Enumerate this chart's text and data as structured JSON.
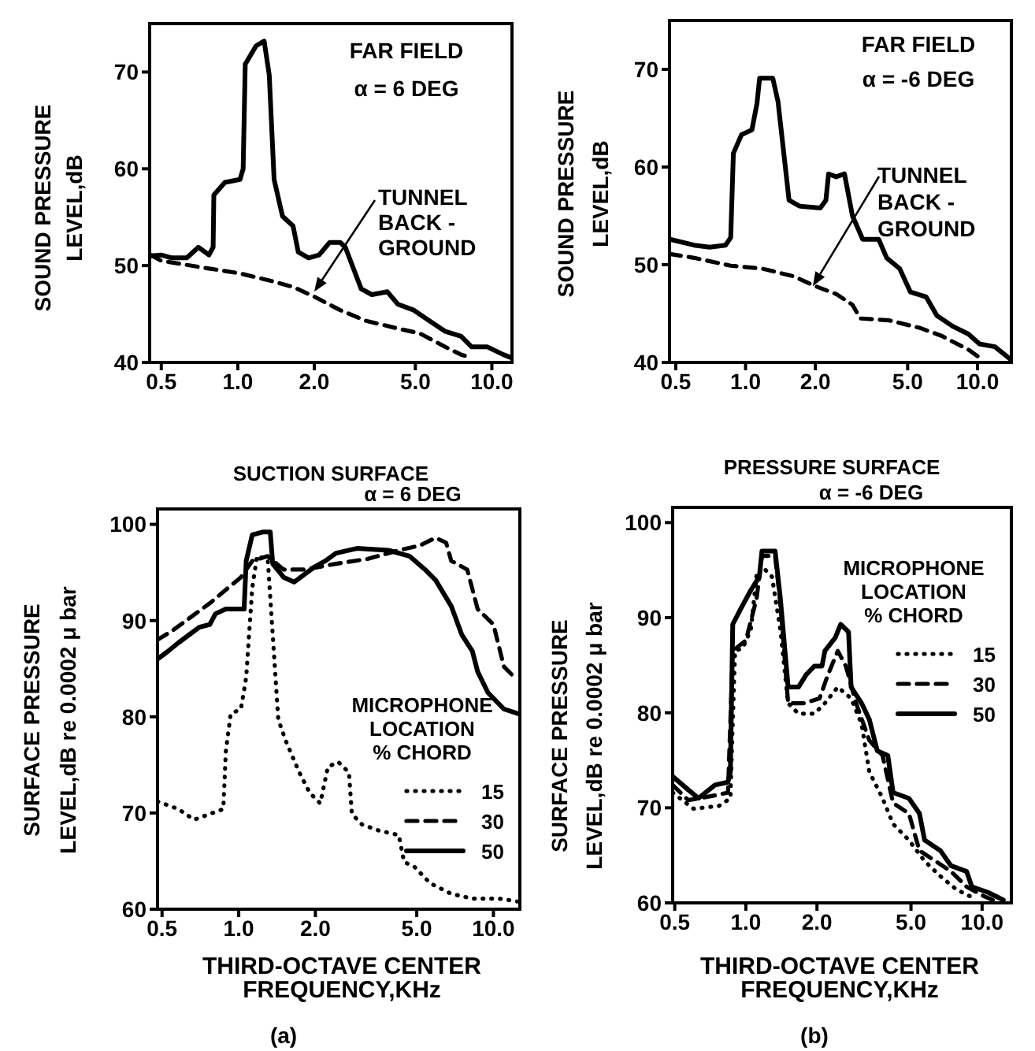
{
  "chart_data": [
    {
      "type": "line",
      "ylabel": "SOUND PRESSURE\nLEVEL,dB",
      "log": "x",
      "xlim": [
        0.45,
        12
      ],
      "ylim": [
        40,
        75
      ],
      "xticks": [
        {
          "value": 0.5,
          "label": "0.5"
        },
        {
          "value": 1,
          "label": "1.0"
        },
        {
          "value": 2,
          "label": "2.0"
        },
        {
          "value": 5,
          "label": "5.0"
        },
        {
          "value": 10,
          "label": "10.0"
        }
      ],
      "yticks": [
        40,
        50,
        60,
        70
      ],
      "annotations": [
        "FAR FIELD\nα = 6 DEG",
        {
          "text": "TUNNEL\nBACK -\nGROUND",
          "x": 2.0,
          "y": 47.3
        }
      ],
      "series": [
        {
          "color": "#000000",
          "line_style": "solid",
          "x": [
            0.455,
            0.5,
            0.55,
            0.63,
            0.7,
            0.77,
            0.8,
            0.805,
            0.89,
            1.02,
            1.05,
            1.07,
            1.18,
            1.27,
            1.33,
            1.39,
            1.5,
            1.65,
            1.73,
            1.9,
            2.09,
            2.3,
            2.53,
            2.65,
            3.06,
            3.37,
            3.88,
            4.27,
            4.93,
            5.68,
            6.56,
            7.57,
            8.33,
            9.61,
            11.1,
            11.9
          ],
          "values": [
            51,
            51.1,
            50.8,
            50.8,
            51.9,
            51.1,
            51.9,
            57.3,
            58.6,
            58.9,
            60,
            70.8,
            72.7,
            73.2,
            69.7,
            58.9,
            55.1,
            54.1,
            51.4,
            50.8,
            51.1,
            52.4,
            52.4,
            51.9,
            47.6,
            47,
            47.3,
            46,
            45.4,
            44.3,
            43.2,
            42.7,
            41.6,
            41.6,
            40.8,
            40.5
          ]
        },
        {
          "color": "#000000",
          "line_style": "dashed",
          "x": [
            0.455,
            0.5,
            0.77,
            1.02,
            1.36,
            1.65,
            2.0,
            2.53,
            3.2,
            4.27,
            5.2,
            6.56,
            7.57,
            8.3
          ],
          "values": [
            51.1,
            50.5,
            49.7,
            49.2,
            48.4,
            47.8,
            46.8,
            45.4,
            44.3,
            43.5,
            43,
            41.6,
            40.8,
            40.5
          ]
        }
      ]
    },
    {
      "type": "line",
      "ylabel": "SOUND PRESSURE\nLEVEL,dB",
      "log": "x",
      "xlim": [
        0.47,
        14
      ],
      "ylim": [
        40,
        75
      ],
      "xticks": [
        {
          "value": 0.5,
          "label": "0.5"
        },
        {
          "value": 1,
          "label": "1.0"
        },
        {
          "value": 2,
          "label": "2.0"
        },
        {
          "value": 5,
          "label": "5.0"
        },
        {
          "value": 10,
          "label": "10.0"
        }
      ],
      "yticks": [
        40,
        50,
        60,
        70
      ],
      "annotations": [
        "FAR FIELD\nα = -6 DEG",
        {
          "text": "TUNNEL\nBACK -\nGROUND",
          "x": 1.95,
          "y": 47.8
        }
      ],
      "series": [
        {
          "color": "#000000",
          "line_style": "solid",
          "x": [
            0.472,
            0.6,
            0.7,
            0.82,
            0.863,
            0.886,
            0.96,
            1.065,
            1.12,
            1.15,
            1.31,
            1.38,
            1.54,
            1.71,
            2.1,
            2.22,
            2.28,
            2.46,
            2.67,
            2.89,
            3.2,
            3.75,
            4.06,
            4.62,
            5.14,
            6.01,
            6.68,
            7.82,
            9.14,
            10.2,
            11.9,
            13.9
          ],
          "values": [
            52.6,
            52,
            51.8,
            52,
            52.8,
            61.4,
            63.3,
            63.8,
            66.5,
            69.1,
            69.1,
            66.7,
            56.6,
            56,
            55.8,
            56.6,
            59.3,
            59,
            59.3,
            55,
            52.6,
            52.6,
            50.7,
            49.6,
            47.2,
            46.7,
            44.8,
            43.7,
            42.9,
            41.9,
            41.6,
            40.3
          ]
        },
        {
          "color": "#000000",
          "line_style": "dashed",
          "x": [
            0.472,
            0.6,
            0.863,
            1.18,
            1.62,
            2.0,
            2.46,
            2.89,
            3.12,
            4.17,
            5.7,
            7.03,
            9.14,
            10.2
          ],
          "values": [
            51.1,
            50.7,
            49.9,
            49.6,
            48.8,
            47.8,
            47,
            45.9,
            44.5,
            44.3,
            43.5,
            42.7,
            41.3,
            40.5
          ]
        }
      ]
    },
    {
      "type": "line",
      "title": "SUCTION SURFACE",
      "subtitle": "α = 6 DEG",
      "xlabel": "THIRD-OCTAVE CENTER\nFREQUENCY,KHz",
      "ylabel": "SURFACE PRESSURE\nLEVEL,dB re 0.0002 μ bar",
      "legend_title": "MICROPHONE\nLOCATION\n% CHORD",
      "legend": "bottom right",
      "log": "x",
      "xlim": [
        0.48,
        12.7
      ],
      "ylim": [
        60,
        101.6
      ],
      "xticks": [
        {
          "value": 0.5,
          "label": "0.5"
        },
        {
          "value": 1,
          "label": "1.0"
        },
        {
          "value": 2,
          "label": "2.0"
        },
        {
          "value": 5,
          "label": "5.0"
        },
        {
          "value": 10,
          "label": "10.0"
        }
      ],
      "yticks": [
        60,
        70,
        80,
        90,
        100
      ],
      "annotations": [
        "(a)"
      ],
      "series": [
        {
          "name": "15",
          "color": "#000000",
          "line_style": "dotted",
          "x": [
            0.48,
            0.58,
            0.668,
            0.77,
            0.87,
            0.89,
            0.93,
            1.02,
            1.07,
            1.13,
            1.18,
            1.3,
            1.43,
            1.53,
            1.73,
            1.9,
            2.09,
            2.24,
            2.46,
            2.71,
            2.78,
            3.05,
            3.52,
            4.25,
            4.46,
            4.9,
            5.64,
            6.83,
            8.27,
            10.5,
            12.4
          ],
          "values": [
            71.2,
            70.4,
            69.3,
            69.9,
            70.4,
            76.4,
            80.3,
            80.8,
            84.1,
            93.4,
            96.7,
            96.4,
            79.7,
            77.5,
            74.2,
            72.1,
            71,
            74.8,
            75.3,
            74.2,
            69.9,
            68.8,
            68.2,
            67.7,
            64.9,
            64.4,
            62.7,
            61.6,
            61.1,
            61.1,
            60.8
          ]
        },
        {
          "name": "30",
          "color": "#000000",
          "line_style": "dashed",
          "x": [
            0.48,
            0.552,
            0.77,
            1.02,
            1.13,
            1.3,
            1.5,
            1.81,
            2.41,
            3.2,
            4.25,
            5.14,
            5.93,
            6.52,
            6.83,
            7.89,
            8.67,
            10,
            11,
            12.1
          ],
          "values": [
            88,
            89,
            91.8,
            94.5,
            96.2,
            96.7,
            95.3,
            95.3,
            95.9,
            96.4,
            97.3,
            97.8,
            98.6,
            98.1,
            96.2,
            95.3,
            91.2,
            89.6,
            85.2,
            84.1
          ]
        },
        {
          "name": "50",
          "color": "#000000",
          "line_style": "solid",
          "x": [
            0.48,
            0.527,
            0.58,
            0.637,
            0.7,
            0.77,
            0.81,
            0.89,
            1.05,
            1.07,
            1.13,
            1.24,
            1.33,
            1.36,
            1.5,
            1.65,
            1.81,
            1.99,
            2.19,
            2.41,
            2.91,
            3.87,
            4.68,
            5.39,
            5.93,
            6.83,
            7.52,
            8.27,
            8.67,
            9.52,
            11,
            12.6
          ],
          "values": [
            86,
            86.8,
            87.7,
            88.5,
            89.3,
            89.6,
            90.7,
            91.2,
            91.2,
            96.2,
            98.9,
            99.2,
            99.2,
            95.9,
            94.5,
            94,
            94.8,
            95.6,
            96.2,
            97,
            97.5,
            97.3,
            96.7,
            95.3,
            94.2,
            91.5,
            88.5,
            86.8,
            84.7,
            82.5,
            80.8,
            80.3
          ]
        }
      ]
    },
    {
      "type": "line",
      "title": "PRESSURE SURFACE",
      "subtitle": "α = -6 DEG",
      "xlabel": "THIRD-OCTAVE CENTER\nFREQUENCY,KHz",
      "ylabel": "SURFACE PRESSURE\nLEVEL,dB re 0.0002 μ bar",
      "legend_title": "MICROPHONE\nLOCATION\n% CHORD",
      "legend": "top right",
      "log": "x",
      "xlim": [
        0.49,
        13.3
      ],
      "ylim": [
        60,
        101.6
      ],
      "xticks": [
        {
          "value": 0.5,
          "label": "0.5"
        },
        {
          "value": 1,
          "label": "1.0"
        },
        {
          "value": 2,
          "label": "2.0"
        },
        {
          "value": 5,
          "label": "5.0"
        },
        {
          "value": 10,
          "label": "10.0"
        }
      ],
      "yticks": [
        60,
        70,
        80,
        90,
        100
      ],
      "annotations": [
        "(b)"
      ],
      "series": [
        {
          "name": "15",
          "color": "#000000",
          "line_style": "dotted",
          "x": [
            0.49,
            0.6,
            0.77,
            0.86,
            0.9,
            0.97,
            1.05,
            1.11,
            1.17,
            1.29,
            1.4,
            1.51,
            1.67,
            1.95,
            2.16,
            2.45,
            2.79,
            3.09,
            3.33,
            3.79,
            4.2,
            4.9,
            5.71,
            6.66,
            7.79,
            9.05
          ],
          "values": [
            71.6,
            69.9,
            70.2,
            71,
            86.5,
            86.8,
            88.7,
            94.5,
            95.4,
            94.3,
            88.7,
            81,
            79.9,
            79.9,
            81,
            82.7,
            81.5,
            78.8,
            73.8,
            71,
            68.3,
            66.6,
            64.4,
            62.8,
            61.4,
            60.6
          ]
        },
        {
          "name": "30",
          "color": "#000000",
          "line_style": "dashed",
          "x": [
            0.49,
            0.57,
            0.74,
            0.84,
            0.88,
            1.0,
            1.11,
            1.17,
            1.33,
            1.4,
            1.51,
            1.76,
            2.05,
            2.21,
            2.45,
            2.65,
            2.93,
            3.33,
            3.79,
            4.2,
            4.9,
            5.43,
            6.34,
            7.39,
            8.6,
            10,
            11.1
          ],
          "values": [
            72.4,
            70.8,
            71.3,
            71.6,
            86.5,
            87.6,
            92,
            96.5,
            96.5,
            91.5,
            81,
            81,
            81.5,
            83.8,
            86.5,
            84.9,
            81,
            77.1,
            75.5,
            70.5,
            69.4,
            65.5,
            64.4,
            63.3,
            61.7,
            60.8,
            60.3
          ]
        },
        {
          "name": "50",
          "color": "#000000",
          "line_style": "solid",
          "x": [
            0.49,
            0.57,
            0.63,
            0.74,
            0.84,
            0.86,
            0.88,
            0.95,
            1.05,
            1.14,
            1.17,
            1.33,
            1.4,
            1.51,
            1.67,
            1.8,
            1.95,
            2.1,
            2.16,
            2.39,
            2.52,
            2.72,
            2.79,
            3.09,
            3.33,
            3.6,
            3.99,
            4.2,
            4.9,
            5.43,
            5.71,
            6.66,
            7.39,
            8.6,
            9.05,
            10.6,
            12.3
          ],
          "values": [
            73.3,
            71.9,
            71,
            72.4,
            72.7,
            73.8,
            89.3,
            90.9,
            92.9,
            94.3,
            97,
            97,
            92,
            82.7,
            82.7,
            84,
            84.9,
            84.9,
            86.5,
            87.9,
            89.3,
            88.5,
            82.7,
            81,
            79.3,
            76,
            75.5,
            71.6,
            71,
            69.4,
            66.6,
            65.5,
            63.9,
            63.3,
            61.7,
            61.1,
            60.3
          ]
        }
      ]
    }
  ]
}
